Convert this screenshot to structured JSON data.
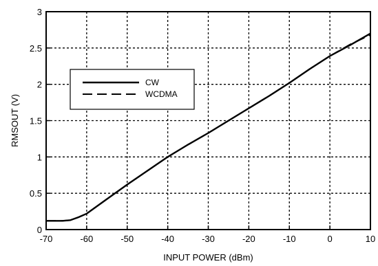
{
  "chart_data": {
    "type": "line",
    "xlabel": "INPUT POWER (dBm)",
    "ylabel": "RMSOUT (V)",
    "xlim": [
      -70,
      10
    ],
    "ylim": [
      0,
      3
    ],
    "xticks": [
      -70,
      -60,
      -50,
      -40,
      -30,
      -20,
      -10,
      0,
      10
    ],
    "yticks": [
      0,
      0.5,
      1,
      1.5,
      2,
      2.5,
      3
    ],
    "xtick_labels": [
      "-70",
      "-60",
      "-50",
      "-40",
      "-30",
      "-20",
      "-10",
      "0",
      "10"
    ],
    "ytick_labels": [
      "0",
      "0.5",
      "1",
      "1.5",
      "2",
      "2.5",
      "3"
    ],
    "grid": true,
    "grid_style": "dotted",
    "legend_position": "upper-left",
    "series": [
      {
        "name": "CW",
        "line_style": "solid",
        "x": [
          -70,
          -66,
          -64,
          -62,
          -60,
          -55,
          -50,
          -45,
          -40,
          -35,
          -30,
          -25,
          -20,
          -15,
          -10,
          -5,
          0,
          5,
          10
        ],
        "y": [
          0.12,
          0.12,
          0.13,
          0.17,
          0.22,
          0.42,
          0.62,
          0.81,
          1.0,
          1.17,
          1.33,
          1.5,
          1.67,
          1.84,
          2.02,
          2.21,
          2.39,
          2.54,
          2.7
        ]
      },
      {
        "name": "WCDMA",
        "line_style": "dashed",
        "x": [
          -70,
          -66,
          -64,
          -62,
          -60,
          -55,
          -50,
          -45,
          -40,
          -35,
          -30,
          -25,
          -20,
          -15,
          -10,
          -5,
          0,
          5,
          10
        ],
        "y": [
          0.12,
          0.12,
          0.13,
          0.17,
          0.22,
          0.42,
          0.62,
          0.81,
          1.0,
          1.17,
          1.33,
          1.5,
          1.67,
          1.84,
          2.02,
          2.21,
          2.39,
          2.55,
          2.68
        ]
      }
    ]
  }
}
